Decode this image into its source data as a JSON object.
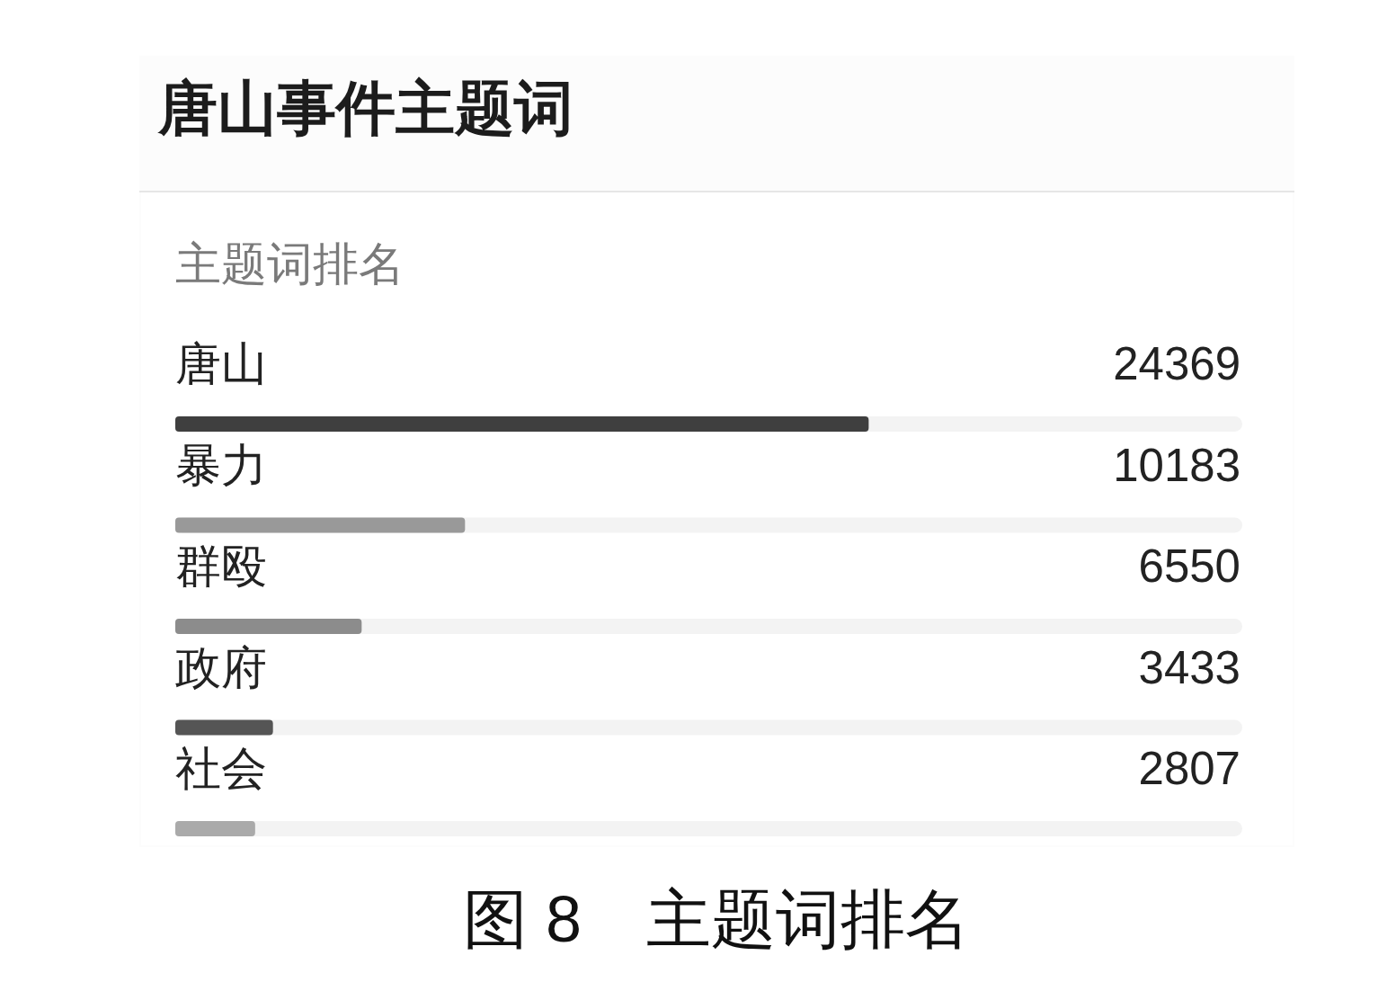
{
  "chart_data": {
    "type": "bar",
    "orientation": "horizontal",
    "title": "唐山事件主题词",
    "subtitle": "主题词排名",
    "categories": [
      "唐山",
      "暴力",
      "群殴",
      "政府",
      "社会"
    ],
    "values": [
      24369,
      10183,
      6550,
      3433,
      2807
    ],
    "colors": [
      "#3f3f3f",
      "#999999",
      "#8c8c8c",
      "#555555",
      "#aaaaaa"
    ],
    "xlim": [
      0,
      37500
    ],
    "data_labels": true,
    "tick_labels": "y",
    "annotations": [
      "图 8　主题词排名"
    ]
  }
}
